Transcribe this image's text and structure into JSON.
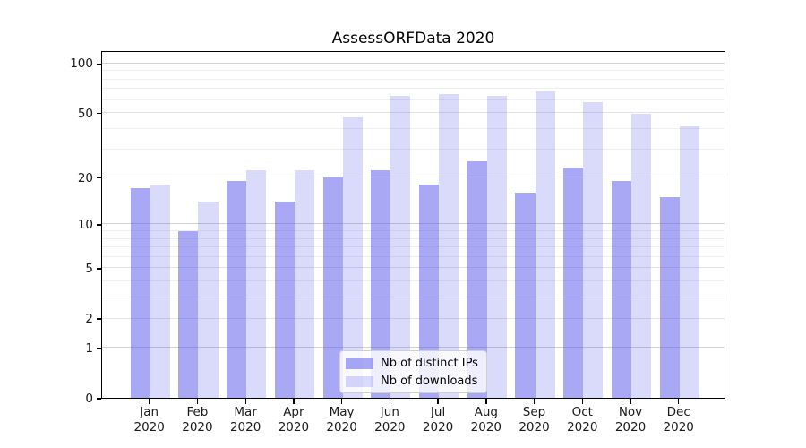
{
  "title": "AssessORFData 2020",
  "chart_data": {
    "type": "bar",
    "title": "AssessORFData 2020",
    "categories": [
      "Jan",
      "Feb",
      "Mar",
      "Apr",
      "May",
      "Jun",
      "Jul",
      "Aug",
      "Sep",
      "Oct",
      "Nov",
      "Dec"
    ],
    "year": "2020",
    "series": [
      {
        "name": "Nb of distinct IPs",
        "color": "rgba(85,85,235,0.51)",
        "values": [
          17,
          9,
          19,
          14,
          20,
          22,
          18,
          25,
          16,
          23,
          19,
          15
        ]
      },
      {
        "name": "Nb of downloads",
        "color": "rgba(85,85,235,0.22)",
        "values": [
          18,
          14,
          22,
          22,
          47,
          63,
          65,
          63,
          67,
          58,
          49,
          41
        ]
      }
    ],
    "xlabel": "",
    "ylabel": "",
    "yscale": "log1p",
    "ylim": [
      0,
      118
    ],
    "y_ticks": [
      0,
      1,
      2,
      5,
      10,
      20,
      50,
      100
    ],
    "y_grid_emphasis": [
      1,
      10,
      100
    ],
    "y_grid_minor": [
      3,
      4,
      6,
      7,
      8,
      9,
      30,
      40,
      60,
      70,
      80,
      90,
      110
    ],
    "grid": "on",
    "legend_position": "bottom-center",
    "accent_color": "#5555eb"
  }
}
